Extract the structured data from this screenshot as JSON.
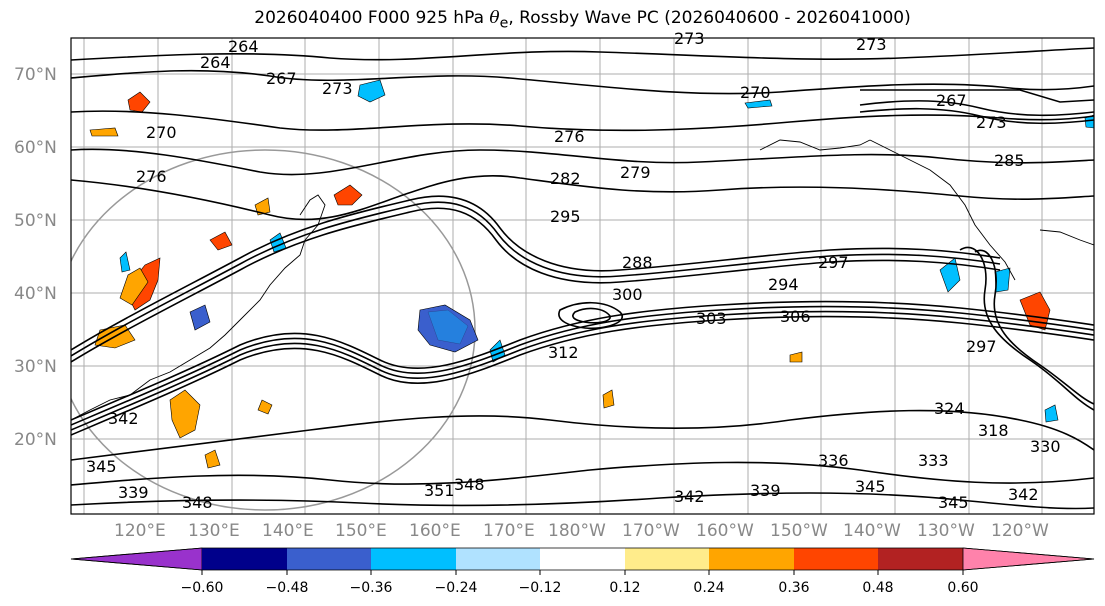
{
  "title": {
    "prefix": "2026040400 F000 925 hPa ",
    "theta_symbol": "θ",
    "theta_sub": "e",
    "suffix": ", Rossby Wave PC (2026040600 - 2026041000)"
  },
  "map": {
    "lat_labels": [
      "70°N",
      "60°N",
      "50°N",
      "40°N",
      "30°N",
      "20°N"
    ],
    "lon_labels": [
      "120°E",
      "130°E",
      "140°E",
      "150°E",
      "160°E",
      "170°E",
      "180°W",
      "170°W",
      "160°W",
      "150°W",
      "140°W",
      "130°W",
      "120°W"
    ],
    "contour_labels": [
      "264",
      "264",
      "267",
      "273",
      "270",
      "276",
      "276",
      "273",
      "270",
      "267",
      "273",
      "282",
      "279",
      "285",
      "288",
      "295",
      "294",
      "297",
      "300",
      "303",
      "306",
      "312",
      "297",
      "324",
      "318",
      "330",
      "336",
      "333",
      "345",
      "342",
      "345",
      "339",
      "342",
      "348",
      "351",
      "348",
      "339",
      "345",
      "342",
      "273"
    ]
  },
  "colorbar": {
    "ticks": [
      "−0.60",
      "−0.48",
      "−0.36",
      "−0.24",
      "−0.12",
      "0.12",
      "0.24",
      "0.36",
      "0.48",
      "0.60"
    ],
    "colors": [
      "#9932cc",
      "#00008b",
      "#3a5fcd",
      "#00bfff",
      "#b0e2ff",
      "#ffffff",
      "#ffec8b",
      "#ffa500",
      "#ff4500",
      "#b22222",
      "#ff82ab"
    ]
  },
  "palette": {
    "neg_strong": "#3a5fcd",
    "neg_mid": "#00bfff",
    "pos_mid": "#ffa500",
    "pos_strong": "#ff4500",
    "contour": "#000000",
    "grid": "#808080"
  }
}
